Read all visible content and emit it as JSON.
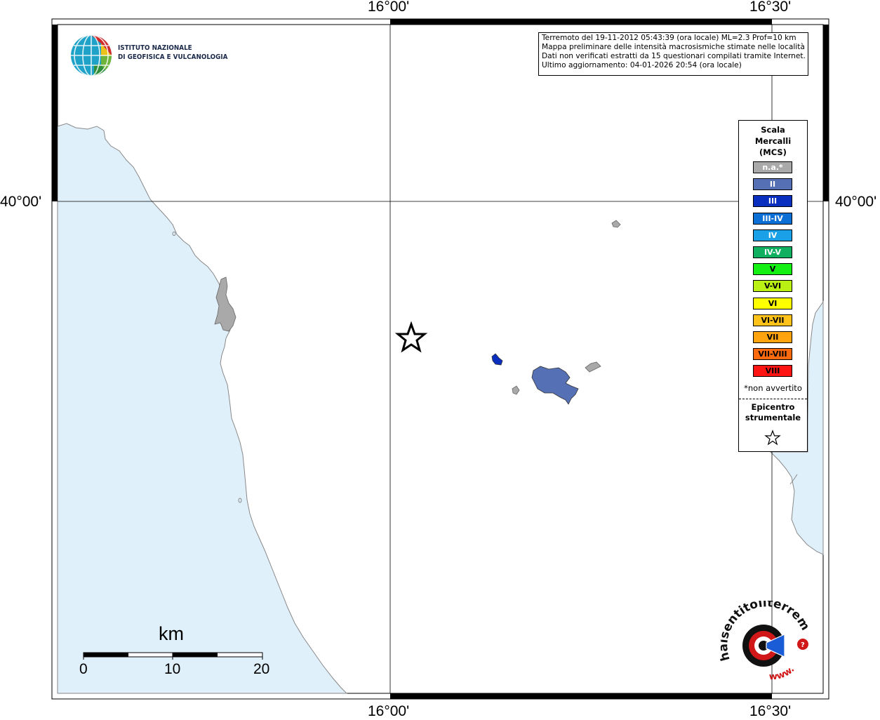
{
  "map": {
    "top_labels": [
      "16°00'",
      "16°30'"
    ],
    "bottom_labels": [
      "16°00'",
      "16°30'"
    ],
    "left_label": "40°00'",
    "right_label": "40°00'"
  },
  "logo": {
    "line1": "ISTITUTO NAZIONALE",
    "line2": "DI GEOFISICA E VULCANOLOGIA"
  },
  "info": {
    "line1": "Terremoto del 19-11-2012 05:43:39 (ora locale) ML=2.3 Prof=10 km",
    "line2": "Mappa preliminare delle intensità macrosismiche stimate nelle località",
    "line3": "Dati non verificati estratti da 15 questionari compilati tramite Internet.",
    "line4": "Ultimo aggiornamento: 04-01-2026 20:54 (ora locale)"
  },
  "legend": {
    "title1": "Scala",
    "title2": "Mercalli",
    "title3": "(MCS)",
    "items": [
      {
        "label": "n.a.*",
        "color": "#a9a9a9"
      },
      {
        "label": "II",
        "color": "#5670b5"
      },
      {
        "label": "III",
        "color": "#0a2fbf"
      },
      {
        "label": "III-IV",
        "color": "#0c6fd6"
      },
      {
        "label": "IV",
        "color": "#1aa0e6"
      },
      {
        "label": "IV-V",
        "color": "#10b060"
      },
      {
        "label": "V",
        "color": "#14f014"
      },
      {
        "label": "V-VI",
        "color": "#bbf014"
      },
      {
        "label": "VI",
        "color": "#ffff00"
      },
      {
        "label": "VI-VII",
        "color": "#ffc21a"
      },
      {
        "label": "VII",
        "color": "#ffa40f"
      },
      {
        "label": "VII-VIII",
        "color": "#ff6a0f"
      },
      {
        "label": "VIII",
        "color": "#ff1414"
      }
    ],
    "note": "*non avvertito",
    "epicenter1": "Epicentro",
    "epicenter2": "strumentale"
  },
  "scale_bar": {
    "title": "km",
    "labels": [
      "0",
      "10",
      "20"
    ]
  },
  "brand": {
    "text1": "haisentitoilterremoto.it",
    "text2": "www."
  },
  "colors": {
    "sea": "#e0f0fb",
    "coast": "#888888",
    "na_area": "#a9a9a9",
    "intensity_II": "#5670b5",
    "intensity_III": "#0a2fbf"
  }
}
